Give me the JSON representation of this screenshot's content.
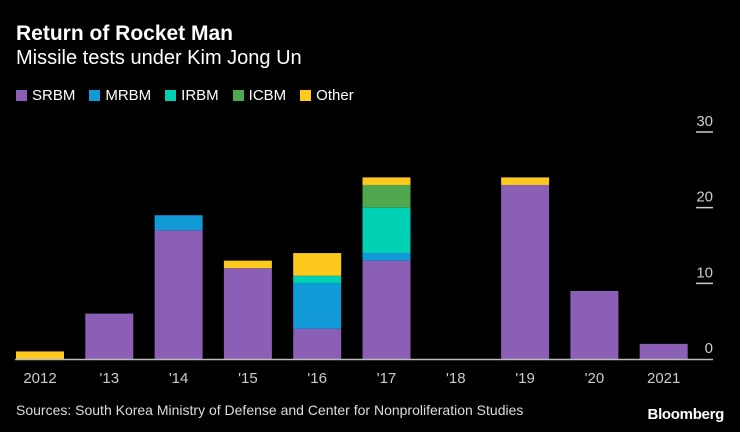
{
  "chart_data": {
    "type": "bar",
    "stacked": true,
    "title": "Return of Rocket Man",
    "subtitle": "Missile tests under Kim Jong Un",
    "categories": [
      "2012",
      "'13",
      "'14",
      "'15",
      "'16",
      "'17",
      "'18",
      "'19",
      "'20",
      "2021"
    ],
    "series": [
      {
        "name": "SRBM",
        "color": "#8a5fb5",
        "values": [
          0,
          6,
          17,
          12,
          4,
          13,
          0,
          23,
          9,
          2
        ]
      },
      {
        "name": "MRBM",
        "color": "#129ad8",
        "values": [
          0,
          0,
          2,
          0,
          6,
          1,
          0,
          0,
          0,
          0
        ]
      },
      {
        "name": "IRBM",
        "color": "#00d0b4",
        "values": [
          0,
          0,
          0,
          0,
          1,
          6,
          0,
          0,
          0,
          0
        ]
      },
      {
        "name": "ICBM",
        "color": "#4fa84f",
        "values": [
          0,
          0,
          0,
          0,
          0,
          3,
          0,
          0,
          0,
          0
        ]
      },
      {
        "name": "Other",
        "color": "#fdc91d",
        "values": [
          1,
          0,
          0,
          1,
          3,
          1,
          0,
          1,
          0,
          0
        ]
      }
    ],
    "ylim": [
      0,
      30
    ],
    "yticks": [
      "0",
      "10",
      "20",
      "30"
    ],
    "legend_position": "top-left",
    "y_axis_position": "right",
    "grid": false
  },
  "source": "Sources: South Korea Ministry of Defense and Center for Nonproliferation Studies",
  "brand": "Bloomberg"
}
